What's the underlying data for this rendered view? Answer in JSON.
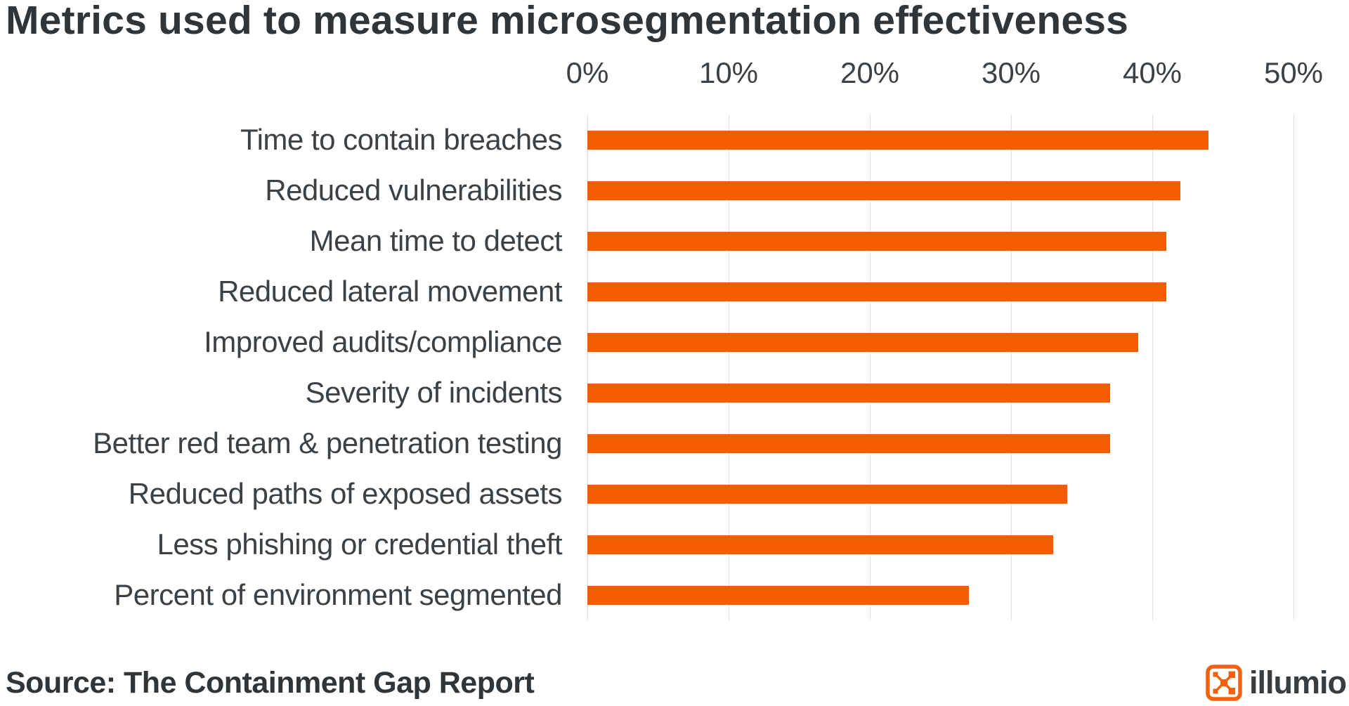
{
  "page": {
    "title": "Metrics used to measure microsegmentation effectiveness",
    "source_note": "Source: The Containment Gap Report"
  },
  "brand": {
    "name": "illumio",
    "icon": "illumio-x-mark-icon"
  },
  "colors": {
    "bar_orange": "#F85C03",
    "title_text": "#303539",
    "label_text": "#3C4146",
    "gridline": "#E0E1E4",
    "logo_orange": "#F4600E",
    "logo_text": "#383D42",
    "background": "#FFFFFF"
  },
  "chart_data": {
    "type": "bar",
    "orientation": "horizontal",
    "title": "Metrics used to measure microsegmentation effectiveness",
    "categories": [
      "Time to contain breaches",
      "Reduced vulnerabilities",
      "Mean time to detect",
      "Reduced lateral movement",
      "Improved audits/compliance",
      "Severity of incidents",
      "Better red team & penetration testing",
      "Reduced paths of exposed assets",
      "Less phishing or credential theft",
      "Percent of environment segmented"
    ],
    "values": [
      44,
      42,
      41,
      41,
      39,
      37,
      37,
      34,
      33,
      27
    ],
    "unit": "%",
    "xlabel": "",
    "ylabel": "",
    "xlim": [
      0,
      50
    ],
    "x_ticks": [
      "0%",
      "10%",
      "20%",
      "30%",
      "40%",
      "50%"
    ],
    "grid": true,
    "legend_position": "none",
    "bar_color": "#F85C03",
    "source": "Source: The Containment Gap Report"
  }
}
